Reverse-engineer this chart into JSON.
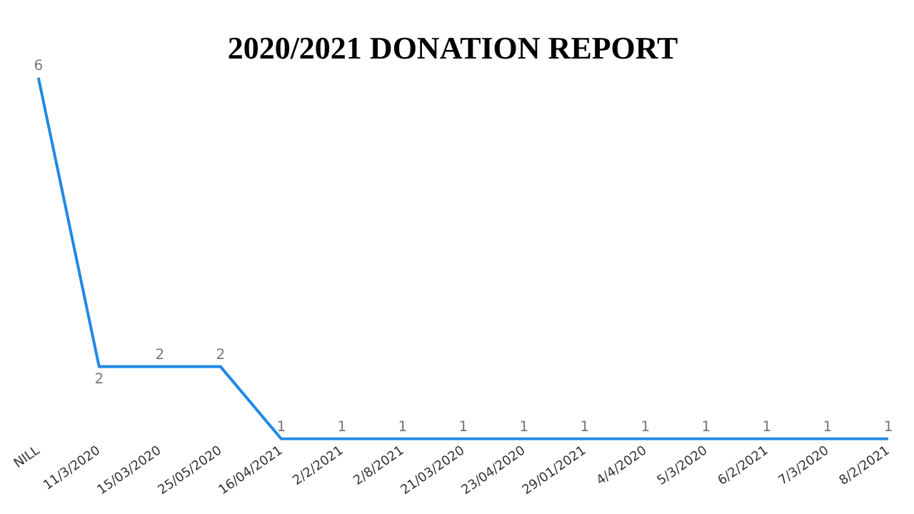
{
  "chart_data": {
    "type": "line",
    "title": "2020/2021 DONATION REPORT",
    "categories": [
      "NILL",
      "11/3/2020",
      "15/03/2020",
      "25/05/2020",
      "16/04/2021",
      "2/2/2021",
      "2/8/2021",
      "21/03/2020",
      "23/04/2020",
      "29/01/2021",
      "4/4/2020",
      "5/3/2020",
      "6/2/2021",
      "7/3/2020",
      "8/2/2021"
    ],
    "series": [
      {
        "color": "#2089e5",
        "values": [
          6,
          2,
          2,
          2,
          1,
          1,
          1,
          1,
          1,
          1,
          1,
          1,
          1,
          1,
          1
        ]
      }
    ],
    "data_labels": true,
    "grid": false,
    "legend": false,
    "marker": "none",
    "tick_labels": "x"
  }
}
